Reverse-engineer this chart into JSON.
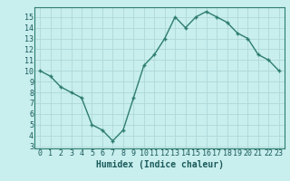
{
  "x": [
    0,
    1,
    2,
    3,
    4,
    5,
    6,
    7,
    8,
    9,
    10,
    11,
    12,
    13,
    14,
    15,
    16,
    17,
    18,
    19,
    20,
    21,
    22,
    23
  ],
  "y": [
    10,
    9.5,
    8.5,
    8,
    7.5,
    5,
    4.5,
    3.5,
    4.5,
    7.5,
    10.5,
    11.5,
    13,
    15,
    14,
    15,
    15.5,
    15,
    14.5,
    13.5,
    13,
    11.5,
    11,
    10
  ],
  "line_color": "#2e7d6e",
  "bg_color": "#c8eeee",
  "grid_color": "#b0d8d8",
  "xlabel": "Humidex (Indice chaleur)",
  "xlabel_fontsize": 7,
  "tick_fontsize": 6,
  "ylim": [
    2.8,
    15.9
  ],
  "xlim": [
    -0.5,
    23.5
  ],
  "yticks": [
    3,
    4,
    5,
    6,
    7,
    8,
    9,
    10,
    11,
    12,
    13,
    14,
    15
  ],
  "xticks": [
    0,
    1,
    2,
    3,
    4,
    5,
    6,
    7,
    8,
    9,
    10,
    11,
    12,
    13,
    14,
    15,
    16,
    17,
    18,
    19,
    20,
    21,
    22,
    23
  ]
}
